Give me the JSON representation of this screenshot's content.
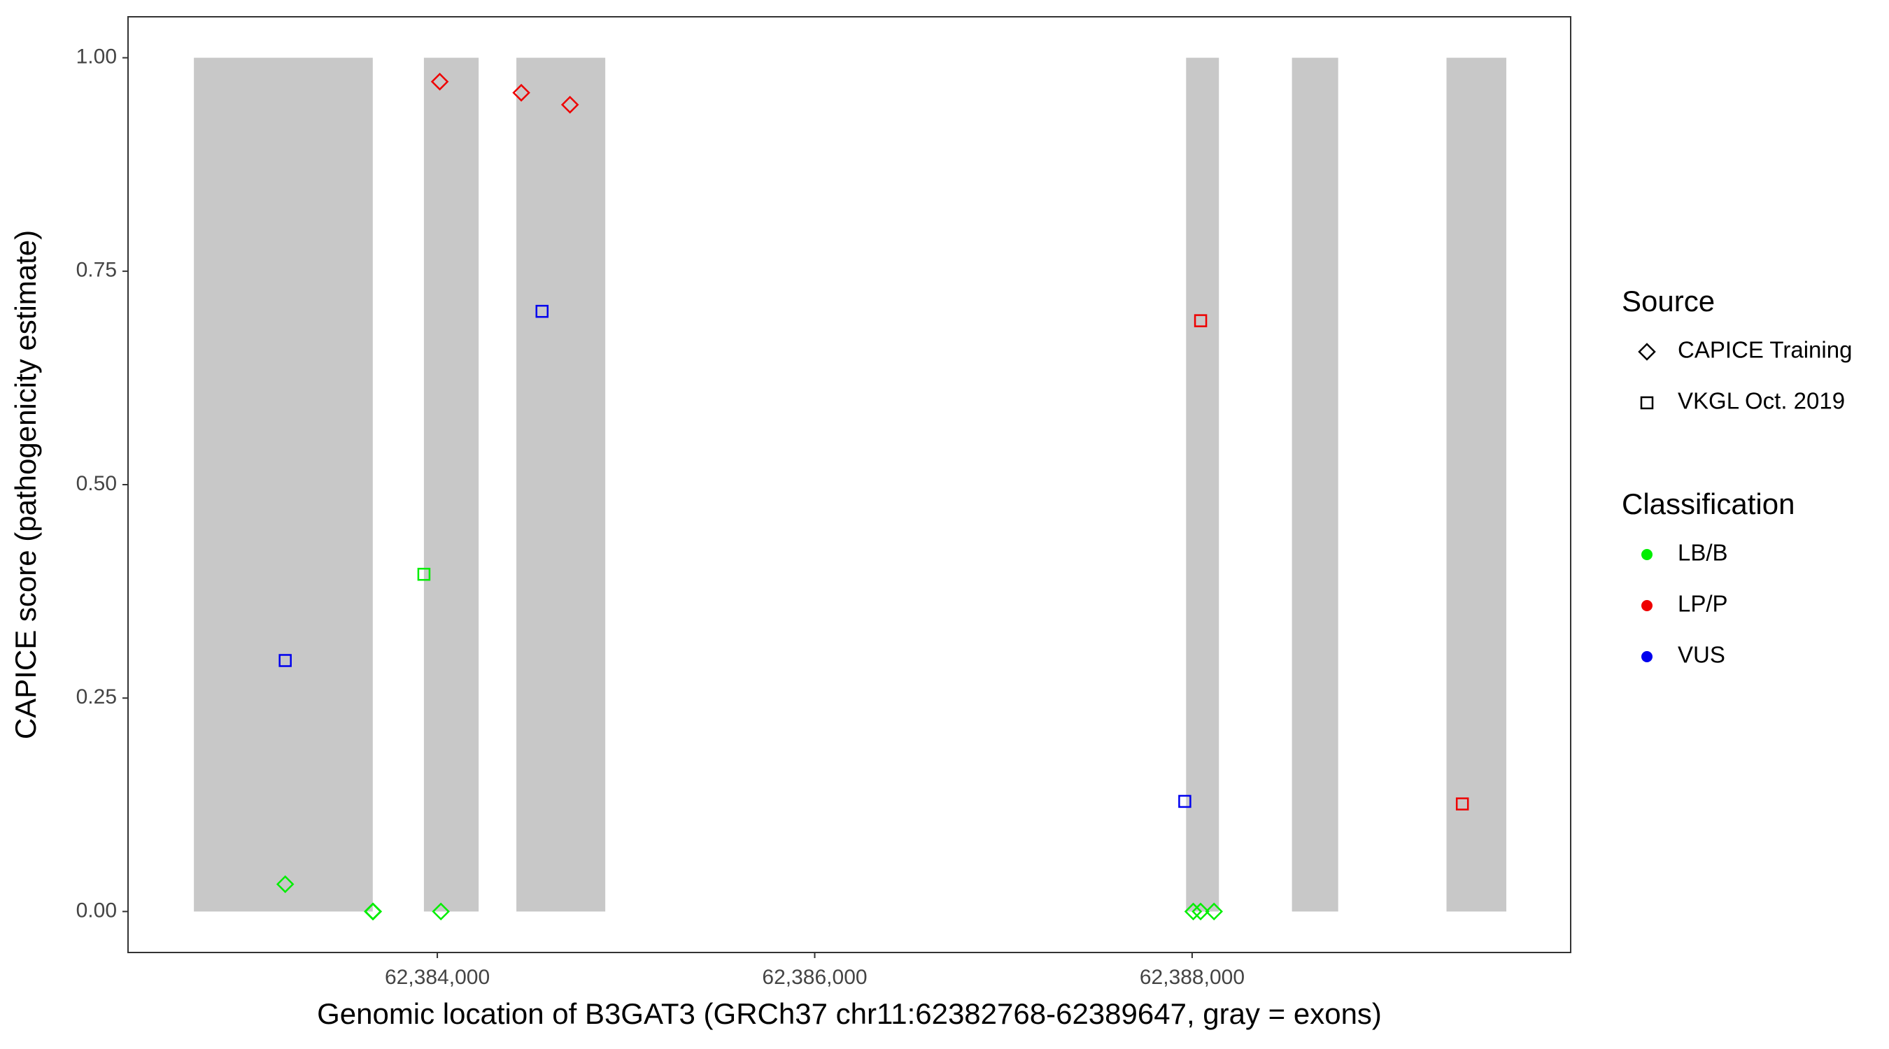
{
  "chart_data": {
    "type": "scatter",
    "x_label": "Genomic location of B3GAT3 (GRCh37 chr11:62382768-62389647, gray = exons)",
    "y_label": "CAPICE score (pathogenicity estimate)",
    "xlim": [
      62382361,
      62390006
    ],
    "ylim": [
      -0.048,
      1.048
    ],
    "xticks": [
      {
        "value": 62384000,
        "label": "62,384,000"
      },
      {
        "value": 62386000,
        "label": "62,386,000"
      },
      {
        "value": 62388000,
        "label": "62,388,000"
      }
    ],
    "yticks": [
      {
        "value": 0,
        "label": "0.00"
      },
      {
        "value": 0.25,
        "label": "0.25"
      },
      {
        "value": 0.5,
        "label": "0.50"
      },
      {
        "value": 0.75,
        "label": "0.75"
      },
      {
        "value": 1,
        "label": "1.00"
      }
    ],
    "exon_color": "#c8c8c8",
    "exons": [
      [
        62382710,
        62383658
      ],
      [
        62383929,
        62384219
      ],
      [
        62384419,
        62384890
      ],
      [
        62387968,
        62388142
      ],
      [
        62388529,
        62388774
      ],
      [
        62389348,
        62389665
      ]
    ],
    "exon_range": [
      0,
      1
    ],
    "series": [
      {
        "shape": "diamond",
        "color": "#00ee00",
        "x": [
          62383194,
          62383658,
          62383660,
          62384019,
          62388006,
          62388045,
          62388116
        ],
        "values": [
          0.032,
          0,
          0,
          0,
          0,
          0,
          0
        ]
      },
      {
        "shape": "diamond",
        "color": "#ee0000",
        "x": [
          62384013,
          62384445,
          62384703
        ],
        "values": [
          0.972,
          0.959,
          0.945
        ]
      },
      {
        "shape": "square",
        "color": "#00ee00",
        "x": [
          62383929
        ],
        "values": [
          0.395
        ]
      },
      {
        "shape": "square",
        "color": "#ee0000",
        "x": [
          62388045,
          62389432
        ],
        "values": [
          0.692,
          0.126
        ]
      },
      {
        "shape": "square",
        "color": "#0000ee",
        "x": [
          62383194,
          62384555,
          62387961
        ],
        "values": [
          0.294,
          0.703,
          0.129
        ]
      }
    ],
    "legends": [
      {
        "title": "Source",
        "items": [
          {
            "label": "CAPICE Training",
            "shape": "diamond",
            "color": "#000000"
          },
          {
            "label": "VKGL Oct. 2019",
            "shape": "square",
            "color": "#000000"
          }
        ]
      },
      {
        "title": "Classification",
        "items": [
          {
            "label": "LB/B",
            "shape": "dot",
            "color": "#00ee00"
          },
          {
            "label": "LP/P",
            "shape": "dot",
            "color": "#ee0000"
          },
          {
            "label": "VUS",
            "shape": "dot",
            "color": "#0000ee"
          }
        ]
      }
    ]
  }
}
